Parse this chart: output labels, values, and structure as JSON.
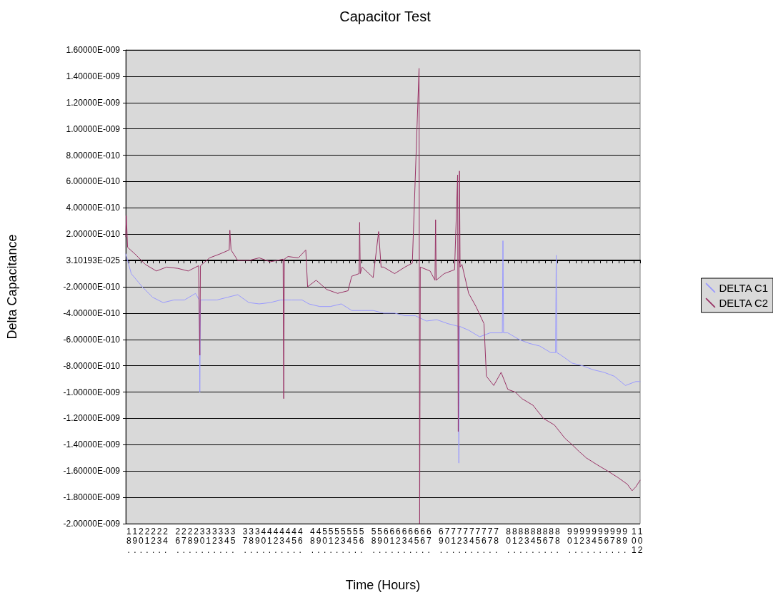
{
  "chart_data": {
    "type": "line",
    "title": "Capacitor Test",
    "xlabel": "Time (Hours)",
    "ylabel": "Delta Capacitance",
    "xlim": [
      18,
      102
    ],
    "xticks": [
      {
        "value": 18.5,
        "label": "18."
      },
      {
        "value": 19.5,
        "label": "19."
      },
      {
        "value": 20.5,
        "label": "20."
      },
      {
        "value": 21.5,
        "label": "21."
      },
      {
        "value": 22.5,
        "label": "22."
      },
      {
        "value": 23.5,
        "label": "23."
      },
      {
        "value": 24.5,
        "label": "24."
      },
      {
        "value": 26.5,
        "label": "26."
      },
      {
        "value": 27.5,
        "label": "27."
      },
      {
        "value": 28.5,
        "label": "28."
      },
      {
        "value": 29.5,
        "label": "29."
      },
      {
        "value": 30.5,
        "label": "30."
      },
      {
        "value": 31.5,
        "label": "31."
      },
      {
        "value": 32.5,
        "label": "32."
      },
      {
        "value": 33.5,
        "label": "33."
      },
      {
        "value": 34.5,
        "label": "34."
      },
      {
        "value": 35.5,
        "label": "35."
      },
      {
        "value": 37.5,
        "label": "37."
      },
      {
        "value": 38.5,
        "label": "38."
      },
      {
        "value": 39.5,
        "label": "39."
      },
      {
        "value": 40.5,
        "label": "40."
      },
      {
        "value": 41.5,
        "label": "41."
      },
      {
        "value": 42.5,
        "label": "42."
      },
      {
        "value": 43.5,
        "label": "43."
      },
      {
        "value": 44.5,
        "label": "44."
      },
      {
        "value": 45.5,
        "label": "45."
      },
      {
        "value": 46.5,
        "label": "46."
      },
      {
        "value": 48.5,
        "label": "48."
      },
      {
        "value": 49.5,
        "label": "49."
      },
      {
        "value": 50.5,
        "label": "50."
      },
      {
        "value": 51.5,
        "label": "51."
      },
      {
        "value": 52.5,
        "label": "52."
      },
      {
        "value": 53.5,
        "label": "53."
      },
      {
        "value": 54.5,
        "label": "54."
      },
      {
        "value": 55.5,
        "label": "55."
      },
      {
        "value": 56.5,
        "label": "56."
      },
      {
        "value": 58.5,
        "label": "58."
      },
      {
        "value": 59.5,
        "label": "59."
      },
      {
        "value": 60.5,
        "label": "60."
      },
      {
        "value": 61.5,
        "label": "61."
      },
      {
        "value": 62.5,
        "label": "62."
      },
      {
        "value": 63.5,
        "label": "63."
      },
      {
        "value": 64.5,
        "label": "64."
      },
      {
        "value": 65.5,
        "label": "65."
      },
      {
        "value": 66.5,
        "label": "66."
      },
      {
        "value": 67.5,
        "label": "67."
      },
      {
        "value": 69.5,
        "label": "69."
      },
      {
        "value": 70.5,
        "label": "70."
      },
      {
        "value": 71.5,
        "label": "71."
      },
      {
        "value": 72.5,
        "label": "72."
      },
      {
        "value": 73.5,
        "label": "73."
      },
      {
        "value": 74.5,
        "label": "74."
      },
      {
        "value": 75.5,
        "label": "75."
      },
      {
        "value": 76.5,
        "label": "76."
      },
      {
        "value": 77.5,
        "label": "77."
      },
      {
        "value": 78.5,
        "label": "78."
      },
      {
        "value": 80.5,
        "label": "80."
      },
      {
        "value": 81.5,
        "label": "81."
      },
      {
        "value": 82.5,
        "label": "82."
      },
      {
        "value": 83.5,
        "label": "83."
      },
      {
        "value": 84.5,
        "label": "84."
      },
      {
        "value": 85.5,
        "label": "85."
      },
      {
        "value": 86.5,
        "label": "86."
      },
      {
        "value": 87.5,
        "label": "87."
      },
      {
        "value": 88.5,
        "label": "88."
      },
      {
        "value": 90.5,
        "label": "90."
      },
      {
        "value": 91.5,
        "label": "91."
      },
      {
        "value": 92.5,
        "label": "92."
      },
      {
        "value": 93.5,
        "label": "93."
      },
      {
        "value": 94.5,
        "label": "94."
      },
      {
        "value": 95.5,
        "label": "95."
      },
      {
        "value": 96.5,
        "label": "96."
      },
      {
        "value": 97.5,
        "label": "97."
      },
      {
        "value": 98.5,
        "label": "98."
      },
      {
        "value": 99.5,
        "label": "99."
      },
      {
        "value": 101,
        "label": "101"
      },
      {
        "value": 102,
        "label": "102"
      }
    ],
    "ylim": [
      -2e-09,
      1.6e-09
    ],
    "yticks": [
      {
        "value": -2e-09,
        "label": "-2.00000E-009"
      },
      {
        "value": -1.8e-09,
        "label": "-1.80000E-009"
      },
      {
        "value": -1.6e-09,
        "label": "-1.60000E-009"
      },
      {
        "value": -1.4e-09,
        "label": "-1.40000E-009"
      },
      {
        "value": -1.2e-09,
        "label": "-1.20000E-009"
      },
      {
        "value": -1e-09,
        "label": "-1.00000E-009"
      },
      {
        "value": -8e-10,
        "label": "-8.00000E-010"
      },
      {
        "value": -6e-10,
        "label": "-6.00000E-010"
      },
      {
        "value": -4e-10,
        "label": "-4.00000E-010"
      },
      {
        "value": -2e-10,
        "label": "-2.00000E-010"
      },
      {
        "value": 3.10193e-25,
        "label": "3.10193E-025"
      },
      {
        "value": 2e-10,
        "label": "2.00000E-010"
      },
      {
        "value": 4e-10,
        "label": "4.00000E-010"
      },
      {
        "value": 6e-10,
        "label": "6.00000E-010"
      },
      {
        "value": 8e-10,
        "label": "8.00000E-010"
      },
      {
        "value": 1e-09,
        "label": "1.00000E-009"
      },
      {
        "value": 1.2e-09,
        "label": "1.20000E-009"
      },
      {
        "value": 1.4e-09,
        "label": "1.40000E-009"
      },
      {
        "value": 1.6e-09,
        "label": "1.60000E-009"
      }
    ],
    "grid": "y",
    "legend": "right",
    "marker": "none",
    "line_style": "solid",
    "series": [
      {
        "name": "DELTA C1",
        "color": "#9999ff",
        "x": [
          18.0,
          18.9,
          20.7,
          22.4,
          24.1,
          25.9,
          27.6,
          29.4,
          30.0,
          30.1,
          30.2,
          31.1,
          32.9,
          34.6,
          36.3,
          38.1,
          39.8,
          41.6,
          43.3,
          45.0,
          46.8,
          47.9,
          49.7,
          51.4,
          53.2,
          54.9,
          56.6,
          58.4,
          60.1,
          61.9,
          63.6,
          65.3,
          67.1,
          68.8,
          70.6,
          72.3,
          72.4,
          72.5,
          74.0,
          75.8,
          77.5,
          79.5,
          79.6,
          79.7,
          80.4,
          82.2,
          83.9,
          85.6,
          87.4,
          88.2,
          88.3,
          88.4,
          89.1,
          90.9,
          92.6,
          94.3,
          96.1,
          97.8,
          99.6,
          101.3,
          102.0
        ],
        "values": [
          5e-11,
          -1e-10,
          -2e-10,
          -2.8e-10,
          -3.2e-10,
          -3e-10,
          -3e-10,
          -2.5e-10,
          -3e-10,
          -1e-09,
          -3e-10,
          -3e-10,
          -3e-10,
          -2.8e-10,
          -2.6e-10,
          -3.2e-10,
          -3.3e-10,
          -3.2e-10,
          -3e-10,
          -3e-10,
          -3e-10,
          -3.3e-10,
          -3.5e-10,
          -3.5e-10,
          -3.3e-10,
          -3.8e-10,
          -3.8e-10,
          -3.8e-10,
          -4e-10,
          -4e-10,
          -4.2e-10,
          -4.2e-10,
          -4.6e-10,
          -4.5e-10,
          -4.8e-10,
          -5e-10,
          -1.54e-09,
          -5e-10,
          -5.3e-10,
          -5.8e-10,
          -5.5e-10,
          -5.5e-10,
          1.5e-10,
          -5.5e-10,
          -5.5e-10,
          -6e-10,
          -6.3e-10,
          -6.5e-10,
          -7e-10,
          -7e-10,
          4e-11,
          -7e-10,
          -7.2e-10,
          -7.8e-10,
          -8e-10,
          -8.3e-10,
          -8.5e-10,
          -8.8e-10,
          -9.5e-10,
          -9.2e-10,
          -9.2e-10
        ]
      },
      {
        "name": "DELTA C2",
        "color": "#993366",
        "x": [
          18.0,
          18.1,
          18.3,
          19.5,
          21.2,
          23.0,
          24.7,
          26.5,
          28.2,
          29.9,
          30.1,
          30.2,
          31.7,
          33.4,
          34.9,
          35.0,
          35.2,
          36.3,
          38.1,
          39.8,
          41.6,
          43.7,
          43.8,
          43.9,
          44.5,
          46.2,
          47.4,
          47.7,
          49.1,
          50.8,
          52.6,
          54.3,
          54.9,
          56.1,
          56.2,
          56.3,
          56.6,
          58.4,
          59.3,
          59.7,
          60.1,
          61.9,
          63.6,
          64.8,
          65.9,
          66.0,
          66.1,
          67.7,
          68.5,
          68.6,
          68.7,
          70.0,
          71.7,
          72.2,
          72.3,
          72.5,
          72.6,
          72.9,
          74.0,
          75.2,
          76.5,
          76.9,
          78.1,
          79.3,
          80.4,
          81.6,
          82.7,
          84.5,
          86.2,
          88.0,
          89.7,
          90.9,
          92.0,
          93.2,
          94.9,
          96.7,
          98.4,
          99.9,
          100.7,
          101.3,
          102.0
        ],
        "values": [
          1.8e-10,
          3.4e-10,
          1e-10,
          5e-11,
          -3e-11,
          -8e-11,
          -5e-11,
          -6e-11,
          -8e-11,
          -4e-11,
          -7.2e-10,
          -4e-11,
          2e-11,
          5e-11,
          8e-11,
          2.3e-10,
          8e-11,
          0,
          0,
          2e-11,
          -1e-11,
          1e-11,
          -1.05e-09,
          1e-11,
          3e-11,
          2e-11,
          8e-11,
          -2e-10,
          -1.5e-10,
          -2.2e-10,
          -2.5e-10,
          -2.3e-10,
          -1.2e-10,
          -1e-10,
          2.9e-10,
          -1e-10,
          -5e-11,
          -1.3e-10,
          2.2e-10,
          -5e-11,
          -5e-11,
          -1e-10,
          -5e-11,
          -2e-11,
          1.46e-09,
          -2e-09,
          -5e-11,
          -8e-11,
          -1.5e-10,
          3.1e-10,
          -1.5e-10,
          -1e-10,
          -7e-11,
          6.5e-10,
          -1.3e-09,
          6.8e-10,
          -5e-11,
          -3e-11,
          -2.5e-10,
          -3.5e-10,
          -4.8e-10,
          -8.8e-10,
          -9.5e-10,
          -8.5e-10,
          -9.8e-10,
          -1e-09,
          -1.05e-09,
          -1.1e-09,
          -1.2e-09,
          -1.25e-09,
          -1.35e-09,
          -1.4e-09,
          -1.45e-09,
          -1.5e-09,
          -1.55e-09,
          -1.6e-09,
          -1.65e-09,
          -1.7e-09,
          -1.75e-09,
          -1.72e-09,
          -1.67e-09
        ]
      }
    ]
  }
}
